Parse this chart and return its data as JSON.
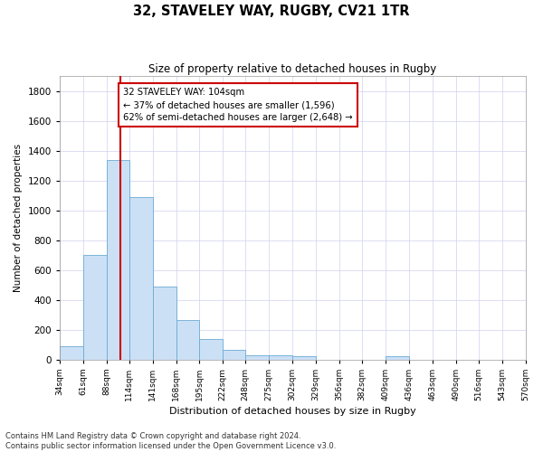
{
  "title": "32, STAVELEY WAY, RUGBY, CV21 1TR",
  "subtitle": "Size of property relative to detached houses in Rugby",
  "xlabel": "Distribution of detached houses by size in Rugby",
  "ylabel": "Number of detached properties",
  "bin_edges": [
    34,
    61,
    88,
    114,
    141,
    168,
    195,
    222,
    248,
    275,
    302,
    329,
    356,
    382,
    409,
    436,
    463,
    490,
    516,
    543,
    570
  ],
  "bin_labels": [
    "34sqm",
    "61sqm",
    "88sqm",
    "114sqm",
    "141sqm",
    "168sqm",
    "195sqm",
    "222sqm",
    "248sqm",
    "275sqm",
    "302sqm",
    "329sqm",
    "356sqm",
    "382sqm",
    "409sqm",
    "436sqm",
    "463sqm",
    "490sqm",
    "516sqm",
    "543sqm",
    "570sqm"
  ],
  "bar_heights": [
    90,
    700,
    1340,
    1090,
    490,
    265,
    135,
    65,
    30,
    30,
    20,
    0,
    0,
    0,
    25,
    0,
    0,
    0,
    0,
    0
  ],
  "bar_color": "#cce0f5",
  "bar_edge_color": "#6aaad4",
  "property_size": 104,
  "annotation_text": "32 STAVELEY WAY: 104sqm\n← 37% of detached houses are smaller (1,596)\n62% of semi-detached houses are larger (2,648) →",
  "annotation_box_color": "#ffffff",
  "annotation_box_edge": "#cc0000",
  "vline_color": "#cc0000",
  "grid_color": "#d0d0f0",
  "ylim": [
    0,
    1900
  ],
  "yticks": [
    0,
    200,
    400,
    600,
    800,
    1000,
    1200,
    1400,
    1600,
    1800
  ],
  "footer_line1": "Contains HM Land Registry data © Crown copyright and database right 2024.",
  "footer_line2": "Contains public sector information licensed under the Open Government Licence v3.0.",
  "background_color": "#ffffff"
}
